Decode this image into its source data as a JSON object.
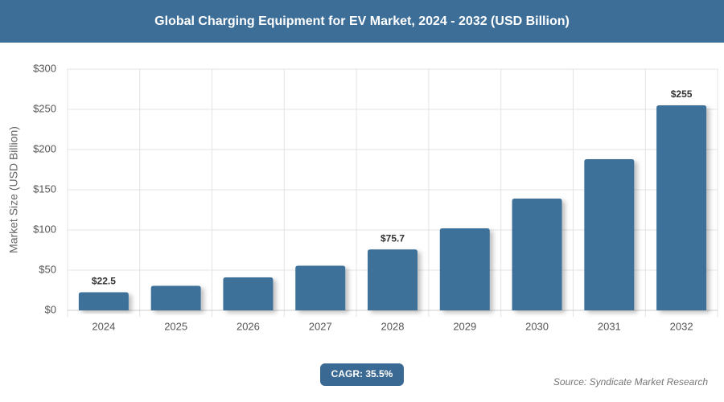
{
  "chart_data": {
    "type": "bar",
    "title": "Global Charging Equipment for EV Market, 2024 - 2032 (USD Billion)",
    "y_label": "Market Size (USD Billion)",
    "categories": [
      "2024",
      "2025",
      "2026",
      "2027",
      "2028",
      "2029",
      "2030",
      "2031",
      "2032"
    ],
    "values": [
      22.5,
      30.5,
      41,
      55.5,
      75.7,
      102,
      139,
      188,
      255
    ],
    "value_labels": [
      "$22.5",
      null,
      null,
      null,
      "$75.7",
      null,
      null,
      null,
      "$255"
    ],
    "color": "#3e7199",
    "ylim": [
      0,
      300
    ],
    "yticks": [
      {
        "value": 0,
        "label": "$0"
      },
      {
        "value": 50,
        "label": "$50"
      },
      {
        "value": 100,
        "label": "$100"
      },
      {
        "value": 150,
        "label": "$150"
      },
      {
        "value": 200,
        "label": "$200"
      },
      {
        "value": 250,
        "label": "$250"
      },
      {
        "value": 300,
        "label": "$300"
      }
    ],
    "grid": true,
    "cagr": "CAGR: 35.5%",
    "source": "Source: Syndicate Market Research"
  }
}
